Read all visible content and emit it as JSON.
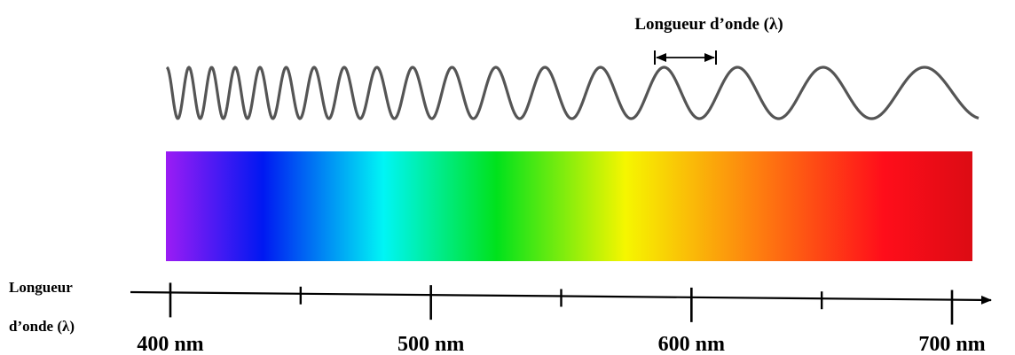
{
  "wave_label": "Longueur d’onde (λ)",
  "axis_label": {
    "line1": "Longueur",
    "line2": "d’onde (λ)"
  },
  "axis": {
    "min_nm": 400,
    "max_nm": 700,
    "major_ticks": [
      {
        "value": 400,
        "label": "400 nm"
      },
      {
        "value": 500,
        "label": "500 nm"
      },
      {
        "value": 600,
        "label": "600 nm"
      },
      {
        "value": 700,
        "label": "700 nm"
      }
    ],
    "minor_ticks": [
      450,
      550,
      650
    ]
  },
  "spectrum_colors": [
    "#9b1cf4",
    "#0018f2",
    "#00f5f5",
    "#00e21c",
    "#f6f600",
    "#fe7a10",
    "#ff0d1a",
    "#dc0c14"
  ],
  "wave_color": "#555555",
  "text_color": "#000000"
}
